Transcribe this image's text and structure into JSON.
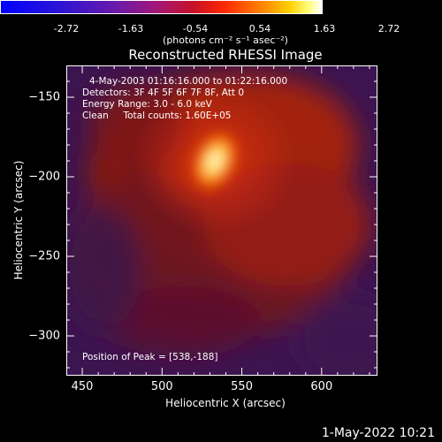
{
  "colorbar": {
    "ticks": [
      "-2.72",
      "-1.63",
      "-0.54",
      "0.54",
      "1.63",
      "2.72"
    ],
    "unit": "(photons cm⁻² s⁻¹ asec⁻²)"
  },
  "title": "Reconstructed RHESSI Image",
  "info": {
    "time": "4-May-2003 01:16:16.000 to 01:22:16.000",
    "detectors": "Detectors: 3F 4F 5F 6F 7F 8F, Att 0",
    "energy": "Energy Range: 3.0 - 6.0 keV",
    "clean": "Clean     Total counts: 1.60E+05",
    "peak": "Position of Peak = [538,-188]"
  },
  "footer": "1-May-2022 10:21",
  "chart_data": {
    "type": "heatmap",
    "title": "Reconstructed RHESSI Image",
    "xlabel": "Heliocentric X (arcsec)",
    "ylabel": "Heliocentric Y (arcsec)",
    "xlim": [
      440,
      635
    ],
    "ylim": [
      -325,
      -130
    ],
    "xticks": [
      450,
      500,
      550,
      600
    ],
    "yticks": [
      -150,
      -200,
      -250,
      -300
    ],
    "colorbar_range": [
      -2.72,
      2.72
    ],
    "peak": [
      538,
      -188
    ],
    "peak_value": 2.72,
    "colormap": "blue-purple-red-yellow-white"
  }
}
